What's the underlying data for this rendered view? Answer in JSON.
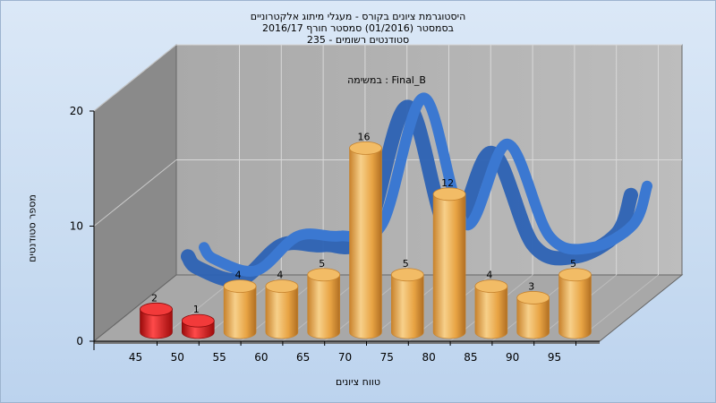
{
  "title_lines": [
    "היסטוגרמת ציונים בקורס - מעגלי מיתוג אלקטרוניים",
    "בסמסטר  (01/2016)  סמסטר חורף 2016/17",
    "סטודנטים רשומים - 235"
  ],
  "chart_data": {
    "type": "bar",
    "title": "היסטוגרמת ציונים בקורס - מעגלי מיתוג אלקטרוניים",
    "subtitle": "בסמסטר  (01/2016)  סמסטר חורף 2016/17 | סטודנטים רשומים - 235",
    "annotation": "במשימה : Final_B",
    "xlabel": "טווח ציונים",
    "ylabel": "מספר סטודנטים",
    "x_ticks": [
      "45",
      "50",
      "55",
      "60",
      "65",
      "70",
      "75",
      "80",
      "85",
      "90",
      "95"
    ],
    "y_ticks": [
      0,
      10,
      20
    ],
    "ylim": [
      0,
      20
    ],
    "grid": true,
    "categories": [
      "45",
      "50",
      "55",
      "60",
      "65",
      "70",
      "75",
      "80",
      "85",
      "90",
      "95"
    ],
    "values": [
      2,
      1,
      4,
      4,
      5,
      16,
      5,
      12,
      4,
      3,
      5
    ],
    "failing_bins": [
      "45",
      "50"
    ],
    "trend_series": {
      "type": "ribbon",
      "color": "#3b78d1"
    },
    "colors": {
      "bar_fail": "#e01818",
      "bar_pass": "#e8a444",
      "ribbon": "#3b78d1",
      "back_wall": "#b3b3b3",
      "side_wall": "#8a8a8a",
      "floor": "#a8a8a8"
    }
  }
}
